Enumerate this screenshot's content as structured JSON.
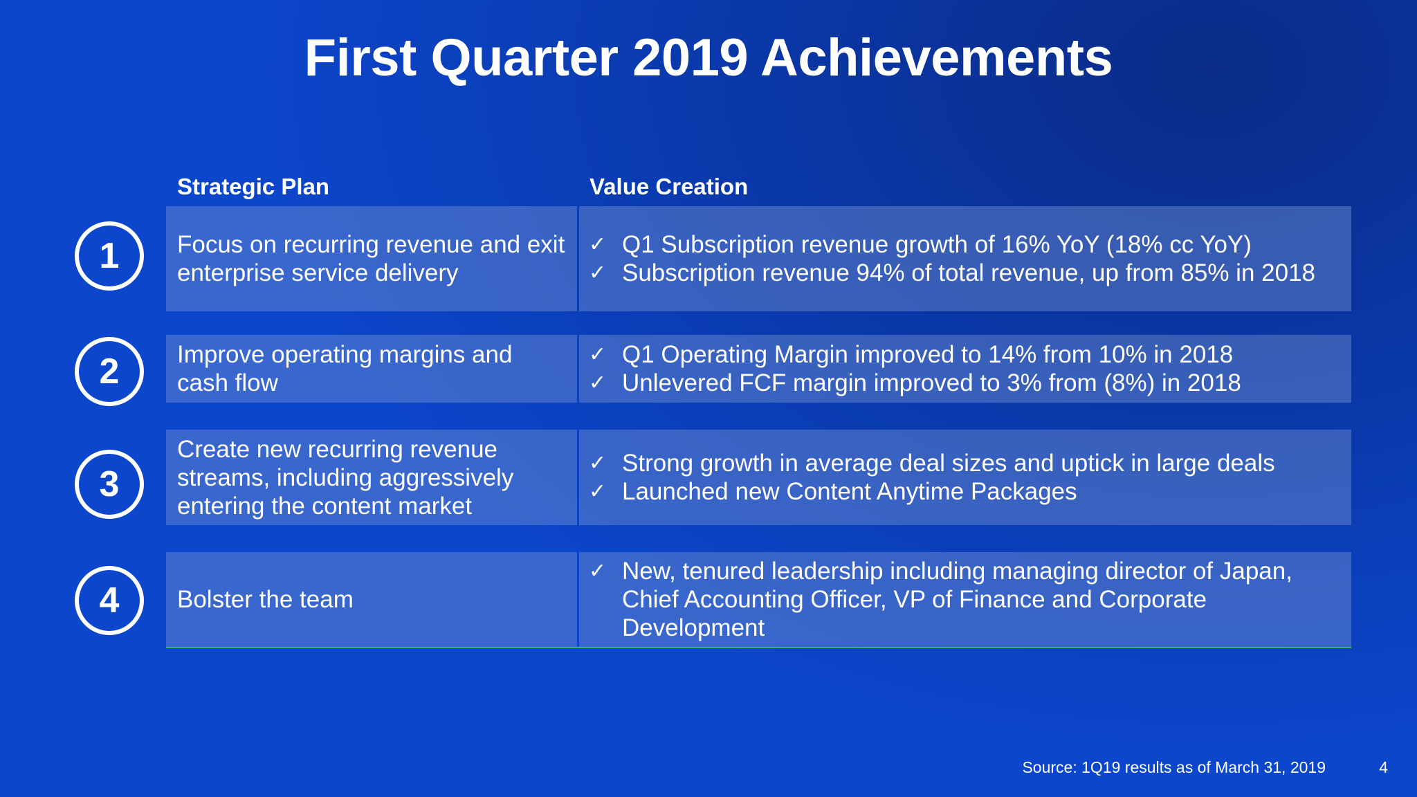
{
  "title": "First Quarter 2019 Achievements",
  "headers": {
    "plan": "Strategic Plan",
    "value": "Value Creation"
  },
  "rows": [
    {
      "number": "1",
      "plan": "Focus on recurring revenue and exit enterprise service delivery",
      "bullets": [
        "Q1 Subscription revenue growth of 16% YoY (18% cc YoY)",
        "Subscription revenue 94% of total revenue, up from 85% in 2018"
      ]
    },
    {
      "number": "2",
      "plan": "Improve operating margins and cash flow",
      "bullets": [
        "Q1 Operating Margin improved to 14% from 10% in 2018",
        "Unlevered FCF margin improved to 3% from (8%) in 2018"
      ]
    },
    {
      "number": "3",
      "plan": "Create new recurring revenue streams, including aggressively entering the content market",
      "bullets": [
        "Strong growth in average deal sizes and uptick in large deals",
        "Launched new Content Anytime Packages"
      ]
    },
    {
      "number": "4",
      "plan": "Bolster the team",
      "bullets": [
        "New, tenured leadership including managing director of Japan, Chief Accounting Officer, VP of Finance and Corporate Development"
      ]
    }
  ],
  "check_glyph": "✓",
  "footer": {
    "source": "Source: 1Q19 results as of March 31, 2019",
    "page": "4"
  }
}
